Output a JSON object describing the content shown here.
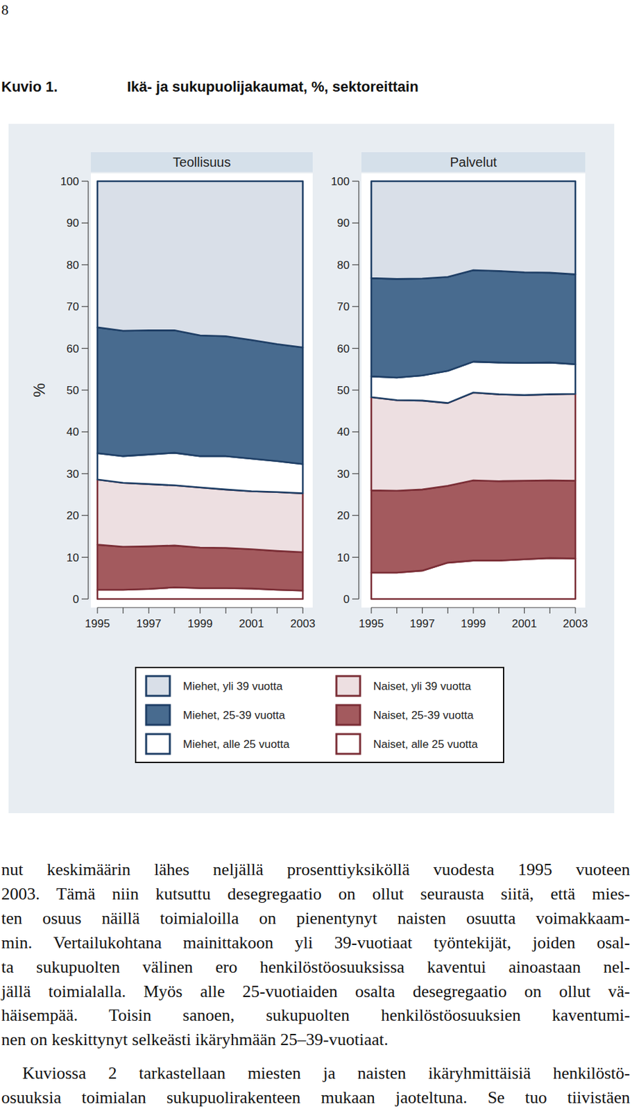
{
  "page_number": "8",
  "figure": {
    "label": "Kuvio 1.",
    "caption": "Ikä- ja sukupuolijakaumat, %, sektoreittain"
  },
  "chart_data": [
    {
      "type": "area",
      "title": "Teollisuus",
      "ylabel": "%",
      "stacked": true,
      "grid": false,
      "legend": "bottom",
      "x": [
        1995,
        1996,
        1997,
        1998,
        1999,
        2000,
        2001,
        2002,
        2003
      ],
      "xlim": [
        1995,
        2003
      ],
      "xticks": [
        1995,
        1997,
        1999,
        2001,
        2003
      ],
      "ylim": [
        0,
        100
      ],
      "yticks": [
        0,
        10,
        20,
        30,
        40,
        50,
        60,
        70,
        80,
        90,
        100
      ],
      "series": [
        {
          "name": "Miehet, yli 39 vuotta",
          "color": "#d9dfe8",
          "values": [
            35.0,
            35.8,
            35.7,
            35.7,
            36.9,
            37.1,
            38.0,
            39.0,
            39.8
          ]
        },
        {
          "name": "Miehet, 25-39 vuotta",
          "color": "#486b8f",
          "values": [
            30.1,
            30.0,
            29.7,
            29.3,
            28.9,
            28.7,
            28.4,
            28.0,
            27.9
          ]
        },
        {
          "name": "Miehet, alle 25 vuotta",
          "color": "#ffffff",
          "values": [
            6.3,
            6.4,
            7.1,
            7.8,
            7.5,
            8.0,
            7.8,
            7.4,
            7.0
          ]
        },
        {
          "name": "Naiset, yli 39 vuotta",
          "color": "#eddfe1",
          "values": [
            15.6,
            15.3,
            14.9,
            14.4,
            14.4,
            14.0,
            13.9,
            14.1,
            14.1
          ]
        },
        {
          "name": "Naiset, 25-39 vuotta",
          "color": "#a35a5e",
          "values": [
            10.8,
            10.3,
            10.2,
            10.0,
            9.7,
            9.6,
            9.4,
            9.3,
            9.2
          ]
        },
        {
          "name": "Naiset, alle 25 vuotta",
          "color": "#ffffff",
          "values": [
            2.2,
            2.2,
            2.4,
            2.8,
            2.6,
            2.6,
            2.5,
            2.2,
            2.0
          ]
        }
      ]
    },
    {
      "type": "area",
      "title": "Palvelut",
      "stacked": true,
      "grid": false,
      "x": [
        1995,
        1996,
        1997,
        1998,
        1999,
        2000,
        2001,
        2002,
        2003
      ],
      "xlim": [
        1995,
        2003
      ],
      "xticks": [
        1995,
        1997,
        1999,
        2001,
        2003
      ],
      "ylim": [
        0,
        100
      ],
      "yticks": [
        0,
        10,
        20,
        30,
        40,
        50,
        60,
        70,
        80,
        90,
        100
      ],
      "series": [
        {
          "name": "Miehet, yli 39 vuotta",
          "color": "#d9dfe8",
          "values": [
            23.2,
            23.4,
            23.3,
            22.9,
            21.3,
            21.5,
            21.8,
            21.9,
            22.3
          ]
        },
        {
          "name": "Miehet, 25-39 vuotta",
          "color": "#486b8f",
          "values": [
            23.5,
            23.6,
            23.2,
            22.5,
            21.9,
            21.9,
            21.7,
            21.5,
            21.5
          ]
        },
        {
          "name": "Miehet, alle 25 vuotta",
          "color": "#ffffff",
          "values": [
            5.0,
            5.4,
            6.0,
            7.7,
            7.4,
            7.6,
            7.7,
            7.6,
            7.1
          ]
        },
        {
          "name": "Naiset, yli 39 vuotta",
          "color": "#eddfe1",
          "values": [
            22.3,
            21.7,
            21.3,
            19.8,
            21.0,
            20.8,
            20.5,
            20.6,
            20.8
          ]
        },
        {
          "name": "Naiset, 25-39 vuotta",
          "color": "#a35a5e",
          "values": [
            19.7,
            19.6,
            19.4,
            18.4,
            19.2,
            19.0,
            18.8,
            18.6,
            18.6
          ]
        },
        {
          "name": "Naiset, alle 25 vuotta",
          "color": "#ffffff",
          "values": [
            6.3,
            6.3,
            6.8,
            8.7,
            9.2,
            9.2,
            9.5,
            9.8,
            9.7
          ]
        }
      ]
    }
  ],
  "paragraphs": [
    [
      "nut keskimäärin lähes neljällä prosenttiyksiköllä vuodesta 1995 vuoteen",
      "2003. Tämä niin kutsuttu desegregaatio on ollut seurausta siitä, että mies-",
      "ten osuus näillä toimialoilla on pienentynyt naisten osuutta voimakkaam-",
      "min. Vertailukohtana mainittakoon yli 39-vuotiaat työntekijät, joiden osal-",
      "ta sukupuolten välinen ero henkilöstöosuuksissa kaventui ainoastaan nel-",
      "jällä toimialalla. Myös alle 25-vuotiaiden osalta desegregaatio on ollut vä-",
      "häisempää. Toisin sanoen, sukupuolten henkilöstöosuuksien kaventumi-",
      "nen on keskittynyt selkeästi ikäryhmään 25–39-vuotiaat."
    ],
    [
      "Kuviossa 2 tarkastellaan miesten ja naisten ikäryhmittäisiä henkilöstö-",
      "osuuksia toimialan sukupuolirakenteen mukaan jaoteltuna. Se tuo tiivistäen"
    ]
  ]
}
